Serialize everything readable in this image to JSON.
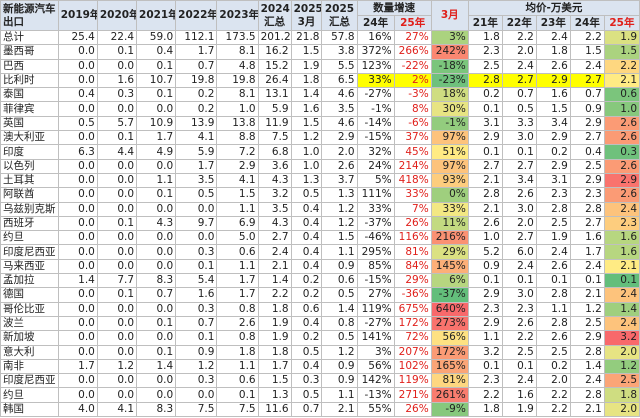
{
  "header": {
    "corner": "新能源汽车出口",
    "years": [
      "2019年",
      "2020年",
      "2021年",
      "2022年",
      "2023年"
    ],
    "totals": [
      [
        "2024",
        "汇总"
      ],
      [
        "2025",
        "3月"
      ],
      [
        "2025",
        "汇总"
      ]
    ],
    "growth": "数量增速",
    "growth_cols": [
      "24年",
      "25年"
    ],
    "march": "3月",
    "price": "均价-万美元",
    "price_cols": [
      "21年",
      "22年",
      "23年",
      "24年",
      "25年"
    ]
  },
  "table": {
    "rows": [
      [
        "总计",
        "25.4",
        "22.4",
        "59.0",
        "112.1",
        "173.5",
        "201.2",
        "21.8",
        "57.8",
        "16%",
        "27%",
        "3%",
        "1.8",
        "2.2",
        "2.4",
        "2.2",
        "1.9"
      ],
      [
        "墨西哥",
        "0.0",
        "0.1",
        "0.4",
        "1.7",
        "8.1",
        "16.2",
        "1.5",
        "3.8",
        "372%",
        "266%",
        "242%",
        "2.3",
        "2.0",
        "1.8",
        "1.5",
        "1.5"
      ],
      [
        "巴西",
        "0.0",
        "0.0",
        "0.1",
        "0.7",
        "4.8",
        "15.2",
        "1.9",
        "5.5",
        "123%",
        "-22%",
        "-18%",
        "2.5",
        "2.4",
        "2.6",
        "2.4",
        "2.2"
      ],
      [
        "比利时",
        "0.0",
        "1.6",
        "10.7",
        "19.8",
        "19.8",
        "26.4",
        "1.8",
        "6.5",
        "33%",
        "2%",
        "-23%",
        "2.8",
        "2.7",
        "2.9",
        "2.7",
        "2.1"
      ],
      [
        "泰国",
        "0.4",
        "0.3",
        "0.1",
        "0.2",
        "8.1",
        "13.1",
        "1.4",
        "4.6",
        "-27%",
        "-3%",
        "18%",
        "0.2",
        "0.7",
        "1.6",
        "0.7",
        "0.6"
      ],
      [
        "菲律宾",
        "0.0",
        "0.0",
        "0.0",
        "0.2",
        "1.0",
        "5.9",
        "1.6",
        "3.5",
        "-1%",
        "8%",
        "30%",
        "0.1",
        "0.5",
        "1.5",
        "0.9",
        "1.0"
      ],
      [
        "英国",
        "0.5",
        "5.7",
        "10.9",
        "13.9",
        "13.8",
        "11.9",
        "1.5",
        "4.6",
        "-14%",
        "-6%",
        "-1%",
        "3.1",
        "3.3",
        "3.4",
        "2.9",
        "2.6"
      ],
      [
        "澳大利亚",
        "0.0",
        "0.1",
        "1.7",
        "4.1",
        "8.8",
        "7.5",
        "1.2",
        "2.9",
        "-15%",
        "37%",
        "97%",
        "2.9",
        "3.0",
        "2.9",
        "2.7",
        "2.6"
      ],
      [
        "印度",
        "6.3",
        "4.4",
        "4.9",
        "5.9",
        "7.2",
        "6.8",
        "1.0",
        "2.0",
        "32%",
        "45%",
        "51%",
        "0.1",
        "0.1",
        "0.2",
        "0.4",
        "0.3"
      ],
      [
        "以色列",
        "0.0",
        "0.0",
        "0.0",
        "1.7",
        "2.9",
        "3.6",
        "1.0",
        "2.6",
        "24%",
        "214%",
        "97%",
        "2.7",
        "2.7",
        "2.9",
        "2.5",
        "2.6"
      ],
      [
        "土耳其",
        "0.0",
        "0.0",
        "1.1",
        "3.5",
        "4.1",
        "4.3",
        "1.3",
        "3.7",
        "5%",
        "418%",
        "93%",
        "2.1",
        "3.4",
        "3.1",
        "2.9",
        "2.9"
      ],
      [
        "阿联酋",
        "0.0",
        "0.0",
        "0.1",
        "0.5",
        "1.5",
        "3.2",
        "0.5",
        "1.3",
        "111%",
        "33%",
        "0%",
        "2.8",
        "2.6",
        "2.3",
        "2.3",
        "2.6"
      ],
      [
        "乌兹别克斯",
        "0.0",
        "0.0",
        "0.0",
        "0.0",
        "1.1",
        "3.5",
        "0.4",
        "1.2",
        "33%",
        "7%",
        "33%",
        "2.1",
        "3.0",
        "2.8",
        "2.8",
        "2.4"
      ],
      [
        "西班牙",
        "0.0",
        "0.1",
        "4.3",
        "9.7",
        "6.9",
        "4.3",
        "0.4",
        "1.2",
        "-37%",
        "26%",
        "11%",
        "2.6",
        "2.0",
        "2.5",
        "2.7",
        "2.3"
      ],
      [
        "约旦",
        "0.0",
        "0.0",
        "0.0",
        "0.0",
        "5.0",
        "2.7",
        "0.4",
        "1.5",
        "-46%",
        "116%",
        "216%",
        "1.0",
        "2.7",
        "1.9",
        "1.6",
        "1.6"
      ],
      [
        "印度尼西亚",
        "0.0",
        "0.0",
        "0.0",
        "0.3",
        "0.6",
        "2.4",
        "0.4",
        "1.1",
        "295%",
        "81%",
        "29%",
        "5.2",
        "6.0",
        "2.4",
        "1.7",
        "1.6"
      ],
      [
        "马来西亚",
        "0.0",
        "0.0",
        "0.0",
        "0.1",
        "1.1",
        "2.1",
        "0.4",
        "0.9",
        "85%",
        "84%",
        "145%",
        "0.9",
        "2.4",
        "2.6",
        "2.4",
        "2.1"
      ],
      [
        "孟加拉",
        "1.4",
        "7.7",
        "8.3",
        "5.4",
        "1.7",
        "1.4",
        "0.2",
        "0.6",
        "-15%",
        "29%",
        "6%",
        "0.1",
        "0.1",
        "0.1",
        "0.1",
        "0.1"
      ],
      [
        "德国",
        "0.0",
        "0.1",
        "0.7",
        "1.6",
        "1.7",
        "2.2",
        "0.2",
        "0.5",
        "27%",
        "-36%",
        "-37%",
        "2.9",
        "3.0",
        "2.8",
        "2.1",
        "2.4"
      ],
      [
        "哥伦比亚",
        "0.0",
        "0.0",
        "0.0",
        "0.3",
        "0.8",
        "1.8",
        "0.6",
        "1.4",
        "119%",
        "675%",
        "640%",
        "2.3",
        "2.3",
        "1.1",
        "1.2",
        "1.4"
      ],
      [
        "波兰",
        "0.0",
        "0.0",
        "0.1",
        "0.7",
        "2.6",
        "1.9",
        "0.4",
        "0.8",
        "-27%",
        "172%",
        "273%",
        "2.9",
        "2.6",
        "2.8",
        "2.5",
        "2.4"
      ],
      [
        "新加坡",
        "0.0",
        "0.0",
        "0.0",
        "0.1",
        "0.8",
        "1.9",
        "0.2",
        "0.5",
        "141%",
        "72%",
        "56%",
        "1.1",
        "2.2",
        "2.6",
        "2.9",
        "3.2"
      ],
      [
        "意大利",
        "0.0",
        "0.0",
        "0.1",
        "0.9",
        "1.8",
        "1.8",
        "0.5",
        "1.2",
        "3%",
        "207%",
        "172%",
        "3.2",
        "2.5",
        "2.5",
        "2.8",
        "2.0"
      ],
      [
        "南非",
        "1.7",
        "1.2",
        "1.4",
        "1.2",
        "1.1",
        "1.7",
        "0.4",
        "0.9",
        "56%",
        "102%",
        "165%",
        "0.1",
        "0.1",
        "0.2",
        "1.4",
        "1.2"
      ],
      [
        "印度尼西亚",
        "0.0",
        "0.0",
        "0.0",
        "0.3",
        "0.6",
        "1.5",
        "0.3",
        "0.9",
        "142%",
        "119%",
        "81%",
        "2.3",
        "2.4",
        "2.0",
        "2.4",
        "2.5"
      ],
      [
        "约旦",
        "0.0",
        "0.0",
        "0.0",
        "0.0",
        "0.1",
        "1.3",
        "0.5",
        "1.1",
        "-13%",
        "271%",
        "261%",
        "2.2",
        "1.6",
        "2.2",
        "2.8",
        "1.8"
      ],
      [
        "韩国",
        "4.0",
        "4.1",
        "8.3",
        "7.5",
        "7.5",
        "11.6",
        "0.7",
        "2.1",
        "55%",
        "26%",
        "-9%",
        "1.8",
        "1.9",
        "2.2",
        "2.1",
        "2.0"
      ]
    ]
  }
}
